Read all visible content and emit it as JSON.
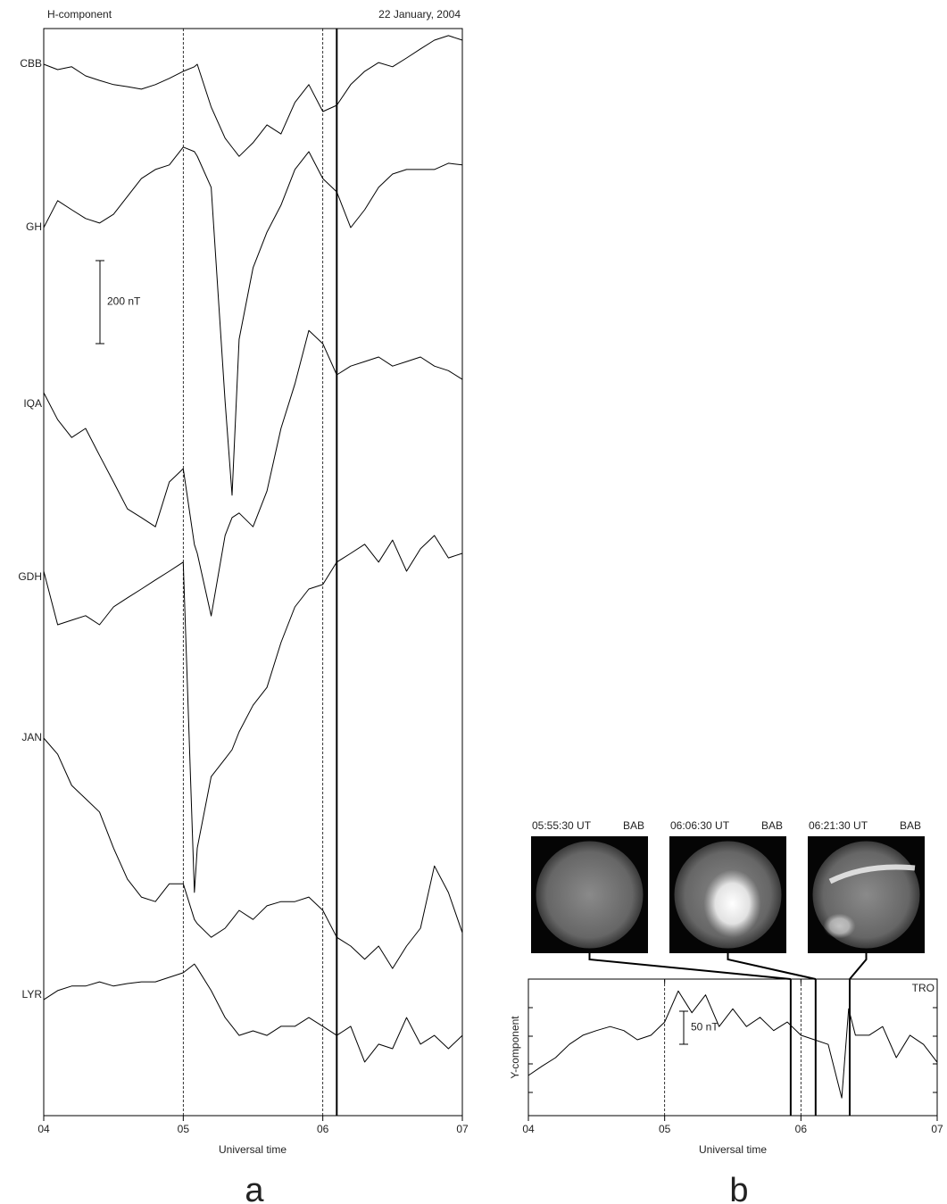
{
  "chart_data": [
    {
      "type": "line",
      "title": "H-component",
      "subtitle": "22 January, 2004",
      "x_label": "Universal time",
      "panel_label": "a",
      "x": [
        4.0,
        4.1,
        4.2,
        4.3,
        4.4,
        4.5,
        4.6,
        4.7,
        4.8,
        4.9,
        5.0,
        5.08,
        5.1,
        5.2,
        5.3,
        5.35,
        5.4,
        5.5,
        5.6,
        5.7,
        5.8,
        5.9,
        6.0,
        6.1,
        6.2,
        6.3,
        6.4,
        6.5,
        6.6,
        6.7,
        6.8,
        6.9,
        7.0
      ],
      "xlim": [
        4,
        7
      ],
      "xticks": [
        {
          "value": 4,
          "label": "04"
        },
        {
          "value": 5,
          "label": "05"
        },
        {
          "value": 6,
          "label": "06"
        },
        {
          "value": 7,
          "label": "07"
        }
      ],
      "scale_bar": {
        "value": 200,
        "label": "200 nT"
      },
      "markers": {
        "dashed": [
          5,
          6
        ],
        "solid": [
          6.1
        ]
      },
      "series": [
        {
          "name": "CBB",
          "color": "#000000",
          "values": [
            0,
            -13,
            -6,
            -28,
            -39,
            -49,
            -54,
            -60,
            -49,
            -34,
            -17,
            -6,
            0,
            -103,
            -178,
            -200,
            -222,
            -189,
            -146,
            -168,
            -92,
            -49,
            -114,
            -99,
            -49,
            -17,
            4,
            -6,
            15,
            37,
            58,
            69,
            58
          ]
        },
        {
          "name": "GH",
          "color": "#000000",
          "values": [
            0,
            65,
            43,
            22,
            11,
            32,
            75,
            118,
            140,
            151,
            194,
            183,
            172,
            97,
            -419,
            -645,
            -269,
            -97,
            -11,
            54,
            140,
            183,
            118,
            86,
            0,
            43,
            97,
            129,
            140,
            140,
            140,
            155,
            151
          ]
        },
        {
          "name": "IQA",
          "color": "#000000",
          "values": [
            28,
            -37,
            -80,
            -58,
            -123,
            -187,
            -252,
            -273,
            -295,
            -187,
            -155,
            -338,
            -359,
            -510,
            -316,
            -273,
            -262,
            -295,
            -209,
            -58,
            49,
            178,
            146,
            71,
            92,
            103,
            114,
            92,
            103,
            114,
            92,
            81,
            60
          ]
        },
        {
          "name": "GDH",
          "color": "#000000",
          "values": [
            15,
            -114,
            -103,
            -92,
            -114,
            -71,
            -49,
            -28,
            -6,
            15,
            37,
            -759,
            -652,
            -480,
            -437,
            -415,
            -372,
            -308,
            -265,
            -157,
            -71,
            -28,
            -17,
            37,
            58,
            80,
            37,
            90,
            15,
            69,
            101,
            47,
            58
          ]
        },
        {
          "name": "JAN",
          "color": "#000000",
          "values": [
            0,
            -39,
            -114,
            -146,
            -178,
            -265,
            -340,
            -383,
            -394,
            -351,
            -351,
            -437,
            -447,
            -480,
            -458,
            -437,
            -415,
            -437,
            -404,
            -394,
            -394,
            -383,
            -415,
            -480,
            -501,
            -533,
            -501,
            -555,
            -501,
            -458,
            -308,
            -372,
            -469
          ]
        },
        {
          "name": "LYR",
          "color": "#000000",
          "values": [
            -11,
            11,
            22,
            22,
            32,
            22,
            28,
            32,
            32,
            43,
            54,
            75,
            65,
            11,
            -54,
            -75,
            -97,
            -86,
            -97,
            -75,
            -75,
            -54,
            -75,
            -97,
            -75,
            -161,
            -118,
            -129,
            -54,
            -118,
            -97,
            -129,
            -97
          ]
        }
      ]
    },
    {
      "type": "line",
      "y_label": "Y-component",
      "x_label": "Universal time",
      "panel_label": "b",
      "x": [
        4.0,
        4.1,
        4.2,
        4.3,
        4.4,
        4.5,
        4.6,
        4.7,
        4.8,
        4.9,
        5.0,
        5.1,
        5.2,
        5.3,
        5.4,
        5.5,
        5.6,
        5.7,
        5.8,
        5.9,
        6.0,
        6.1,
        6.2,
        6.3,
        6.35,
        6.4,
        6.5,
        6.6,
        6.7,
        6.8,
        6.9,
        7.0
      ],
      "xlim": [
        4,
        7
      ],
      "xticks": [
        {
          "value": 4,
          "label": "04"
        },
        {
          "value": 5,
          "label": "05"
        },
        {
          "value": 6,
          "label": "06"
        },
        {
          "value": 7,
          "label": "07"
        }
      ],
      "scale_bar": {
        "value": 50,
        "label": "50 nT"
      },
      "markers": {
        "dashed": [
          5,
          6
        ],
        "solid": [
          5.925,
          6.108,
          6.358
        ]
      },
      "images": [
        {
          "time": "05:55:30 UT",
          "station": "BAB"
        },
        {
          "time": "06:06:30 UT",
          "station": "BAB"
        },
        {
          "time": "06:21:30 UT",
          "station": "BAB"
        }
      ],
      "series": [
        {
          "name": "TRO",
          "color": "#000000",
          "values": [
            0,
            14,
            27,
            47,
            61,
            68,
            74,
            68,
            54,
            61,
            81,
            128,
            95,
            122,
            74,
            101,
            74,
            88,
            68,
            81,
            61,
            54,
            47,
            -34,
            101,
            61,
            61,
            74,
            27,
            61,
            47,
            20
          ]
        }
      ]
    }
  ]
}
